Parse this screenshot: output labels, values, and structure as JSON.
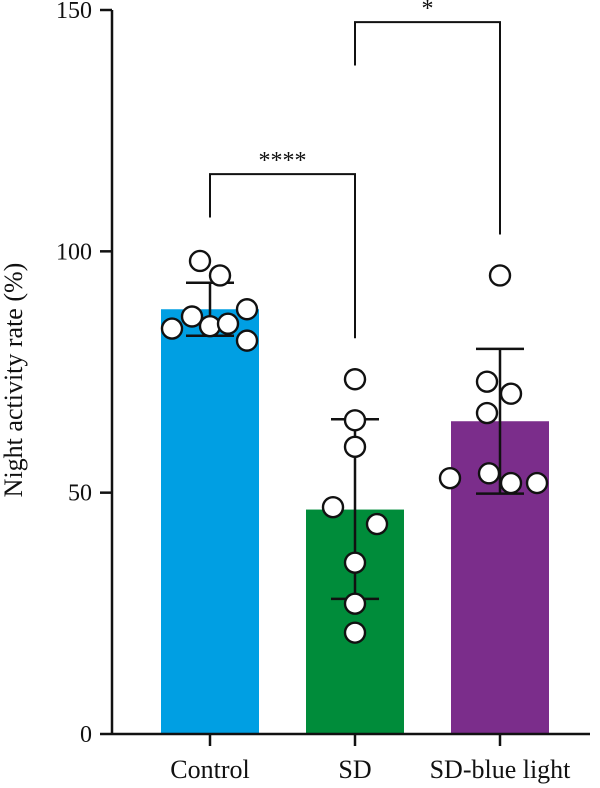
{
  "chart_data": {
    "type": "bar",
    "title": "",
    "xlabel": "",
    "ylabel": "Night activity rate (%)",
    "ylim": [
      0,
      150
    ],
    "yticks": [
      "0",
      "50",
      "100",
      "150"
    ],
    "grid": false,
    "categories": [
      "Control",
      "SD",
      "SD-blue light"
    ],
    "values": [
      88,
      46.5,
      64.8
    ],
    "error": [
      {
        "lower": 82.5,
        "upper": 93.5
      },
      {
        "lower": 28,
        "upper": 65.2
      },
      {
        "lower": 49.8,
        "upper": 79.8
      }
    ],
    "colors": [
      "#009fe3",
      "#008c3a",
      "#7b2d8b"
    ],
    "points": [
      [
        98,
        95,
        86.5,
        84,
        84.5,
        85,
        88,
        81.5
      ],
      [
        73.5,
        65,
        59.5,
        47,
        43.5,
        35.5,
        27,
        21
      ],
      [
        95,
        73,
        70.5,
        66.5,
        54,
        53,
        52,
        52
      ]
    ],
    "significance": [
      {
        "from": 0,
        "to": 1,
        "label": "****"
      },
      {
        "from": 1,
        "to": 2,
        "label": "*"
      }
    ]
  }
}
